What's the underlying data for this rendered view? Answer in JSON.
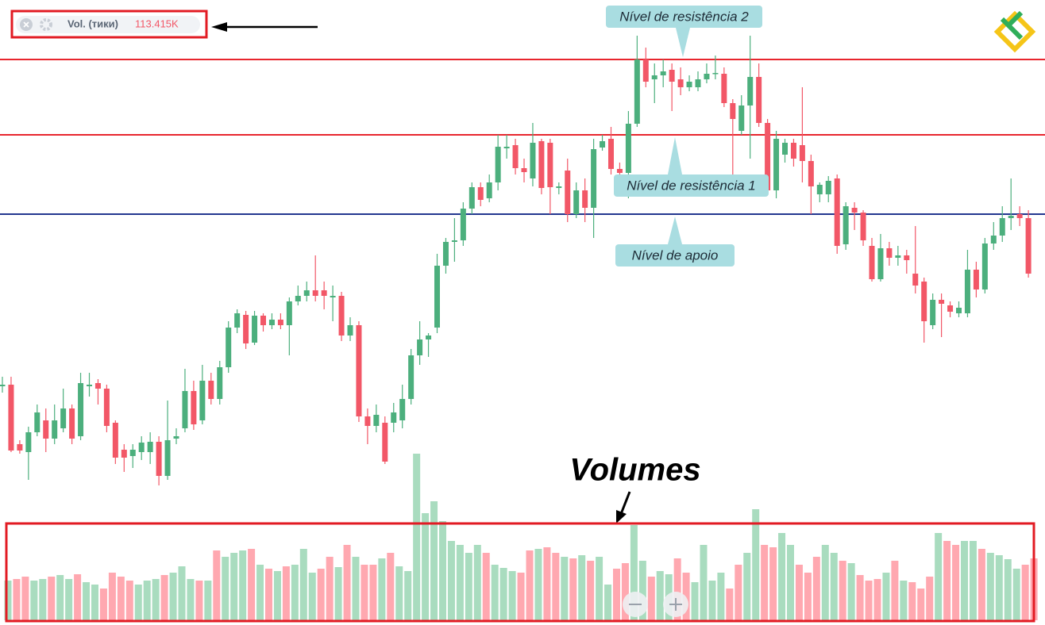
{
  "chart_data": {
    "type": "candlestick",
    "indicator_name": "Vol. (тики)",
    "indicator_value": "113.415K",
    "volume_title": "Volumes",
    "ylim": [
      12,
      800
    ],
    "volume_lim": [
      0,
      220
    ],
    "up_color": "#4caf7d",
    "down_color": "#f25767",
    "volume_up_color": "#a9dcbf",
    "volume_down_color": "#ffa8b0",
    "levels": [
      {
        "label": "Nível de resistência 2",
        "value": 725,
        "color": "#e8262e"
      },
      {
        "label": "Nível de resistência 1",
        "value": 630,
        "color": "#e8262e"
      },
      {
        "label": "Nível de apoio",
        "value": 530,
        "color": "#23368f"
      }
    ],
    "ohlc": [
      [
        313,
        325,
        305,
        315
      ],
      [
        315,
        325,
        230,
        232
      ],
      [
        240,
        245,
        228,
        232
      ],
      [
        230,
        262,
        195,
        255
      ],
      [
        255,
        290,
        250,
        280
      ],
      [
        270,
        285,
        230,
        247
      ],
      [
        247,
        290,
        240,
        270
      ],
      [
        260,
        310,
        255,
        285
      ],
      [
        285,
        290,
        240,
        247
      ],
      [
        250,
        330,
        245,
        317
      ],
      [
        313,
        330,
        300,
        315
      ],
      [
        317,
        322,
        290,
        310
      ],
      [
        310,
        315,
        255,
        263
      ],
      [
        267,
        270,
        215,
        223
      ],
      [
        233,
        240,
        205,
        223
      ],
      [
        225,
        240,
        210,
        233
      ],
      [
        230,
        250,
        220,
        242
      ],
      [
        230,
        255,
        215,
        243
      ],
      [
        243,
        250,
        188,
        200
      ],
      [
        200,
        295,
        195,
        245
      ],
      [
        247,
        260,
        240,
        250
      ],
      [
        260,
        335,
        255,
        307
      ],
      [
        307,
        320,
        258,
        265
      ],
      [
        270,
        340,
        265,
        320
      ],
      [
        320,
        330,
        290,
        297
      ],
      [
        297,
        345,
        290,
        337
      ],
      [
        337,
        395,
        330,
        387
      ],
      [
        387,
        410,
        380,
        405
      ],
      [
        403,
        408,
        360,
        367
      ],
      [
        368,
        408,
        365,
        402
      ],
      [
        402,
        405,
        382,
        390
      ],
      [
        390,
        405,
        385,
        397
      ],
      [
        397,
        405,
        385,
        390
      ],
      [
        390,
        425,
        352,
        420
      ],
      [
        420,
        440,
        415,
        427
      ],
      [
        427,
        445,
        420,
        434
      ],
      [
        434,
        478,
        420,
        427
      ],
      [
        434,
        445,
        410,
        427
      ],
      [
        425,
        440,
        395,
        427
      ],
      [
        427,
        432,
        370,
        377
      ],
      [
        377,
        400,
        370,
        390
      ],
      [
        390,
        395,
        268,
        275
      ],
      [
        275,
        285,
        240,
        263
      ],
      [
        263,
        290,
        255,
        277
      ],
      [
        267,
        275,
        215,
        218
      ],
      [
        267,
        292,
        255,
        280
      ],
      [
        270,
        315,
        260,
        297
      ],
      [
        297,
        360,
        290,
        352
      ],
      [
        352,
        395,
        340,
        372
      ],
      [
        372,
        380,
        350,
        377
      ],
      [
        387,
        480,
        380,
        465
      ],
      [
        465,
        500,
        455,
        495
      ],
      [
        495,
        525,
        470,
        497
      ],
      [
        497,
        545,
        490,
        537
      ],
      [
        537,
        570,
        530,
        564
      ],
      [
        564,
        570,
        540,
        548
      ],
      [
        550,
        580,
        545,
        570
      ],
      [
        570,
        630,
        560,
        615
      ],
      [
        613,
        630,
        600,
        615
      ],
      [
        617,
        625,
        580,
        588
      ],
      [
        588,
        600,
        570,
        583
      ],
      [
        575,
        645,
        565,
        620
      ],
      [
        622,
        625,
        555,
        563
      ],
      [
        620,
        625,
        530,
        564
      ],
      [
        563,
        570,
        555,
        565
      ],
      [
        585,
        600,
        520,
        530
      ],
      [
        530,
        570,
        525,
        560
      ],
      [
        560,
        575,
        520,
        538
      ],
      [
        538,
        625,
        500,
        612
      ],
      [
        614,
        630,
        610,
        622
      ],
      [
        625,
        640,
        580,
        587
      ],
      [
        587,
        595,
        575,
        582
      ],
      [
        582,
        660,
        550,
        644
      ],
      [
        644,
        755,
        640,
        725
      ],
      [
        725,
        740,
        690,
        697
      ],
      [
        700,
        720,
        670,
        705
      ],
      [
        705,
        725,
        690,
        710
      ],
      [
        712,
        720,
        660,
        697
      ],
      [
        700,
        715,
        680,
        690
      ],
      [
        690,
        705,
        685,
        697
      ],
      [
        690,
        710,
        685,
        700
      ],
      [
        700,
        720,
        695,
        707
      ],
      [
        707,
        730,
        700,
        708
      ],
      [
        707,
        715,
        665,
        670
      ],
      [
        670,
        675,
        560,
        650
      ],
      [
        635,
        680,
        630,
        667
      ],
      [
        667,
        755,
        600,
        703
      ],
      [
        703,
        720,
        640,
        645
      ],
      [
        645,
        650,
        555,
        560
      ],
      [
        560,
        635,
        550,
        625
      ],
      [
        605,
        625,
        595,
        620
      ],
      [
        620,
        625,
        590,
        600
      ],
      [
        617,
        690,
        570,
        597
      ],
      [
        597,
        605,
        530,
        565
      ],
      [
        555,
        570,
        545,
        567
      ],
      [
        555,
        578,
        545,
        572
      ],
      [
        575,
        580,
        480,
        490
      ],
      [
        492,
        545,
        485,
        540
      ],
      [
        538,
        545,
        510,
        532
      ],
      [
        532,
        535,
        490,
        497
      ],
      [
        490,
        500,
        445,
        448
      ],
      [
        448,
        505,
        445,
        487
      ],
      [
        487,
        495,
        465,
        475
      ],
      [
        475,
        490,
        465,
        478
      ],
      [
        478,
        485,
        455,
        472
      ],
      [
        455,
        515,
        430,
        440
      ],
      [
        445,
        450,
        368,
        395
      ],
      [
        390,
        430,
        385,
        422
      ],
      [
        422,
        430,
        375,
        417
      ],
      [
        415,
        420,
        400,
        407
      ],
      [
        405,
        420,
        400,
        412
      ],
      [
        405,
        485,
        400,
        460
      ],
      [
        460,
        470,
        425,
        435
      ],
      [
        435,
        500,
        430,
        493
      ],
      [
        493,
        520,
        485,
        503
      ],
      [
        503,
        540,
        495,
        525
      ],
      [
        525,
        575,
        510,
        528
      ],
      [
        530,
        540,
        515,
        525
      ],
      [
        525,
        535,
        450,
        455
      ]
    ],
    "volumes": [
      50,
      52,
      55,
      50,
      52,
      55,
      57,
      52,
      58,
      48,
      45,
      40,
      60,
      55,
      50,
      45,
      50,
      52,
      57,
      60,
      68,
      52,
      50,
      50,
      88,
      80,
      85,
      88,
      90,
      70,
      65,
      62,
      68,
      70,
      90,
      60,
      65,
      80,
      67,
      95,
      80,
      70,
      70,
      78,
      85,
      68,
      62,
      210,
      135,
      150,
      125,
      100,
      95,
      85,
      95,
      85,
      70,
      66,
      62,
      60,
      88,
      90,
      92,
      85,
      80,
      78,
      82,
      75,
      80,
      45,
      65,
      72,
      120,
      75,
      55,
      62,
      58,
      78,
      60,
      48,
      95,
      50,
      60,
      40,
      70,
      85,
      140,
      95,
      92,
      110,
      95,
      70,
      60,
      80,
      95,
      85,
      75,
      72,
      57,
      50,
      52,
      60,
      75,
      50,
      48,
      40,
      55,
      110,
      100,
      95,
      100,
      100,
      90,
      85,
      82,
      77,
      65,
      70,
      78
    ]
  }
}
